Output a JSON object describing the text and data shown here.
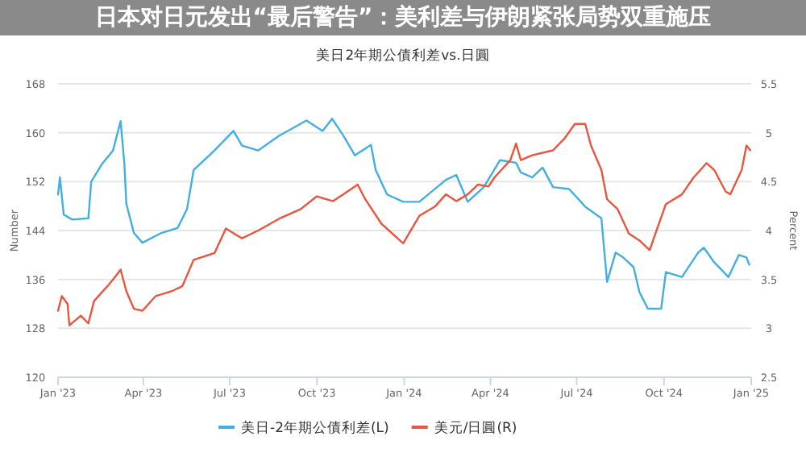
{
  "chart_data": {
    "type": "line",
    "title": "美日2年期公債利差vs.日圓",
    "ylabel": "Number",
    "y2label": "Percent",
    "xlim": [
      "2023-01-01",
      "2025-01-01"
    ],
    "xticks": [
      {
        "value": "2023-01-01",
        "label": "Jan '23"
      },
      {
        "value": "2023-04-01",
        "label": "Apr '23"
      },
      {
        "value": "2023-07-01",
        "label": "Jul '23"
      },
      {
        "value": "2023-10-01",
        "label": "Oct '23"
      },
      {
        "value": "2024-01-01",
        "label": "Jan '24"
      },
      {
        "value": "2024-04-01",
        "label": "Apr '24"
      },
      {
        "value": "2024-07-01",
        "label": "Jul '24"
      },
      {
        "value": "2024-10-01",
        "label": "Oct '24"
      },
      {
        "value": "2025-01-01",
        "label": "Jan '25"
      }
    ],
    "ylim": [
      120,
      168
    ],
    "yticks": [
      120,
      128,
      136,
      144,
      152,
      160,
      168
    ],
    "y2lim": [
      2.5,
      5.5
    ],
    "y2ticks": [
      2.5,
      3,
      3.5,
      4,
      4.5,
      5,
      5.5
    ],
    "grid": "y",
    "legend": "bottom",
    "annotations": [
      "日本对日元发出“最后警告”：美利差与伊朗紧张局势双重施压"
    ],
    "series": [
      {
        "name": "美日-2年期公債利差(L)",
        "color": "#41b0e0",
        "x": [
          "2023-01-01",
          "2023-01-03",
          "2023-01-07",
          "2023-01-16",
          "2023-02-02",
          "2023-02-05",
          "2023-02-16",
          "2023-02-28",
          "2023-03-08",
          "2023-03-12",
          "2023-03-14",
          "2023-03-22",
          "2023-03-31",
          "2023-04-20",
          "2023-05-07",
          "2023-05-17",
          "2023-05-24",
          "2023-06-15",
          "2023-07-05",
          "2023-07-14",
          "2023-07-31",
          "2023-08-22",
          "2023-09-20",
          "2023-10-07",
          "2023-10-17",
          "2023-10-29",
          "2023-11-10",
          "2023-11-27",
          "2023-12-02",
          "2023-12-14",
          "2023-12-31",
          "2024-01-17",
          "2024-02-14",
          "2024-02-25",
          "2024-03-08",
          "2024-03-25",
          "2024-04-11",
          "2024-04-28",
          "2024-05-03",
          "2024-05-15",
          "2024-05-26",
          "2024-06-06",
          "2024-06-23",
          "2024-07-10",
          "2024-07-27",
          "2024-08-02",
          "2024-08-11",
          "2024-08-19",
          "2024-08-30",
          "2024-09-05",
          "2024-09-14",
          "2024-09-28",
          "2024-10-03",
          "2024-10-20",
          "2024-11-06",
          "2024-11-12",
          "2024-11-23",
          "2024-12-08",
          "2024-12-19",
          "2024-12-27",
          "2024-12-30"
        ],
        "values": [
          149.9,
          152.7,
          146.6,
          145.8,
          146,
          152,
          154.8,
          157.1,
          161.9,
          154.8,
          148.4,
          143.6,
          142,
          143.6,
          144.4,
          147.5,
          153.9,
          157.1,
          160.3,
          157.9,
          157.1,
          159.5,
          162,
          160.3,
          162.3,
          159.5,
          156.3,
          158,
          153.9,
          149.9,
          148.7,
          148.7,
          152.3,
          153.1,
          148.7,
          151.1,
          155.5,
          155.1,
          153.5,
          152.7,
          154.3,
          151.1,
          150.8,
          147.9,
          146,
          135.6,
          140.4,
          139.6,
          138,
          134,
          131.2,
          131.2,
          137.2,
          136.4,
          140.4,
          141.2,
          138.8,
          136.4,
          140,
          139.6,
          138.4
        ]
      },
      {
        "name": "美元/日圓(R)",
        "color": "#e8563f",
        "axis": "y2",
        "x": [
          "2023-01-01",
          "2023-01-05",
          "2023-01-11",
          "2023-01-13",
          "2023-01-25",
          "2023-02-02",
          "2023-02-08",
          "2023-02-22",
          "2023-02-28",
          "2023-03-08",
          "2023-03-14",
          "2023-03-22",
          "2023-03-31",
          "2023-04-14",
          "2023-05-01",
          "2023-05-12",
          "2023-05-24",
          "2023-06-15",
          "2023-06-27",
          "2023-07-14",
          "2023-07-31",
          "2023-08-22",
          "2023-09-14",
          "2023-10-01",
          "2023-10-18",
          "2023-10-29",
          "2023-11-13",
          "2023-11-21",
          "2023-12-08",
          "2023-12-31",
          "2024-01-17",
          "2024-02-03",
          "2024-02-14",
          "2024-02-25",
          "2024-03-08",
          "2024-03-19",
          "2024-03-30",
          "2024-04-05",
          "2024-04-22",
          "2024-04-28",
          "2024-05-03",
          "2024-05-15",
          "2024-06-06",
          "2024-06-18",
          "2024-06-29",
          "2024-07-10",
          "2024-07-16",
          "2024-07-27",
          "2024-08-02",
          "2024-08-13",
          "2024-08-25",
          "2024-09-05",
          "2024-09-16",
          "2024-09-22",
          "2024-10-03",
          "2024-10-20",
          "2024-11-01",
          "2024-11-15",
          "2024-11-23",
          "2024-12-05",
          "2024-12-10",
          "2024-12-22",
          "2024-12-27",
          "2024-12-31"
        ],
        "values": [
          3.18,
          3.33,
          3.25,
          3.03,
          3.13,
          3.05,
          3.28,
          3.43,
          3.5,
          3.6,
          3.38,
          3.2,
          3.18,
          3.33,
          3.38,
          3.43,
          3.7,
          3.77,
          4.02,
          3.92,
          4.0,
          4.12,
          4.22,
          4.35,
          4.3,
          4.37,
          4.47,
          4.32,
          4.07,
          3.87,
          4.15,
          4.25,
          4.37,
          4.3,
          4.37,
          4.47,
          4.45,
          4.54,
          4.72,
          4.89,
          4.72,
          4.77,
          4.82,
          4.94,
          5.09,
          5.09,
          4.87,
          4.62,
          4.32,
          4.22,
          3.97,
          3.9,
          3.8,
          3.97,
          4.27,
          4.37,
          4.54,
          4.69,
          4.62,
          4.4,
          4.37,
          4.62,
          4.87,
          4.82
        ]
      }
    ]
  }
}
